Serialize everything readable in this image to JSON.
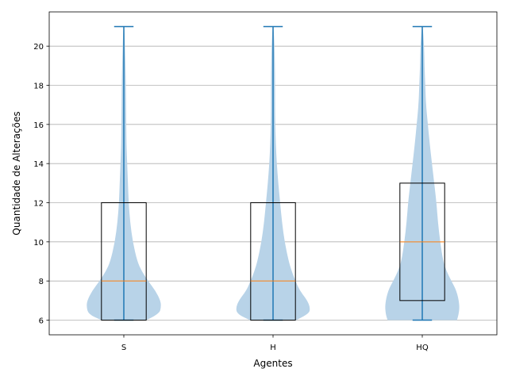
{
  "chart_data": {
    "type": "violin",
    "categories": [
      "S",
      "H",
      "HQ"
    ],
    "xlabel": "Agentes",
    "ylabel": "Quantidade de Alterações",
    "ylim": [
      5.25,
      21.75
    ],
    "yticks": [
      6,
      8,
      10,
      12,
      14,
      16,
      18,
      20
    ],
    "grid": "horizontal",
    "violins": [
      {
        "category": "S",
        "min": 6,
        "max": 21,
        "q1": 6,
        "median": 8,
        "q3": 12,
        "density": [
          [
            6.0,
            0.6
          ],
          [
            6.3,
            0.95
          ],
          [
            6.7,
            1.0
          ],
          [
            7.0,
            0.98
          ],
          [
            7.5,
            0.85
          ],
          [
            8.0,
            0.65
          ],
          [
            8.5,
            0.48
          ],
          [
            9.0,
            0.36
          ],
          [
            10.0,
            0.24
          ],
          [
            11.0,
            0.17
          ],
          [
            12.0,
            0.13
          ],
          [
            13.0,
            0.11
          ],
          [
            14.0,
            0.09
          ],
          [
            15.0,
            0.07
          ],
          [
            16.0,
            0.065
          ],
          [
            17.0,
            0.06
          ],
          [
            18.0,
            0.055
          ],
          [
            19.0,
            0.045
          ],
          [
            20.0,
            0.03
          ],
          [
            21.0,
            0.012
          ]
        ]
      },
      {
        "category": "H",
        "min": 6,
        "max": 21,
        "q1": 6,
        "median": 8,
        "q3": 12,
        "density": [
          [
            6.0,
            0.62
          ],
          [
            6.3,
            0.95
          ],
          [
            6.6,
            1.0
          ],
          [
            7.0,
            0.92
          ],
          [
            7.5,
            0.72
          ],
          [
            8.0,
            0.6
          ],
          [
            8.5,
            0.5
          ],
          [
            9.0,
            0.42
          ],
          [
            10.0,
            0.31
          ],
          [
            11.0,
            0.24
          ],
          [
            12.0,
            0.19
          ],
          [
            13.0,
            0.14
          ],
          [
            14.0,
            0.1
          ],
          [
            15.0,
            0.075
          ],
          [
            16.0,
            0.06
          ],
          [
            17.0,
            0.055
          ],
          [
            18.0,
            0.055
          ],
          [
            19.0,
            0.05
          ],
          [
            20.0,
            0.04
          ],
          [
            21.0,
            0.012
          ]
        ]
      },
      {
        "category": "HQ",
        "min": 6,
        "max": 21,
        "q1": 7,
        "median": 10,
        "q3": 13,
        "density": [
          [
            6.0,
            0.93
          ],
          [
            6.3,
            0.98
          ],
          [
            6.8,
            1.0
          ],
          [
            7.5,
            0.92
          ],
          [
            8.0,
            0.78
          ],
          [
            8.5,
            0.65
          ],
          [
            9.0,
            0.56
          ],
          [
            10.0,
            0.48
          ],
          [
            11.0,
            0.42
          ],
          [
            12.0,
            0.38
          ],
          [
            13.0,
            0.32
          ],
          [
            14.0,
            0.26
          ],
          [
            15.0,
            0.2
          ],
          [
            16.0,
            0.15
          ],
          [
            17.0,
            0.1
          ],
          [
            18.0,
            0.08
          ],
          [
            19.0,
            0.06
          ],
          [
            20.0,
            0.05
          ],
          [
            21.0,
            0.012
          ]
        ]
      }
    ],
    "colors": {
      "violin_fill": "#b8d3e8",
      "whisker": "#1f77b4",
      "median": "#ff7f0e",
      "box": "#000000",
      "grid": "#b0b0b0"
    }
  }
}
